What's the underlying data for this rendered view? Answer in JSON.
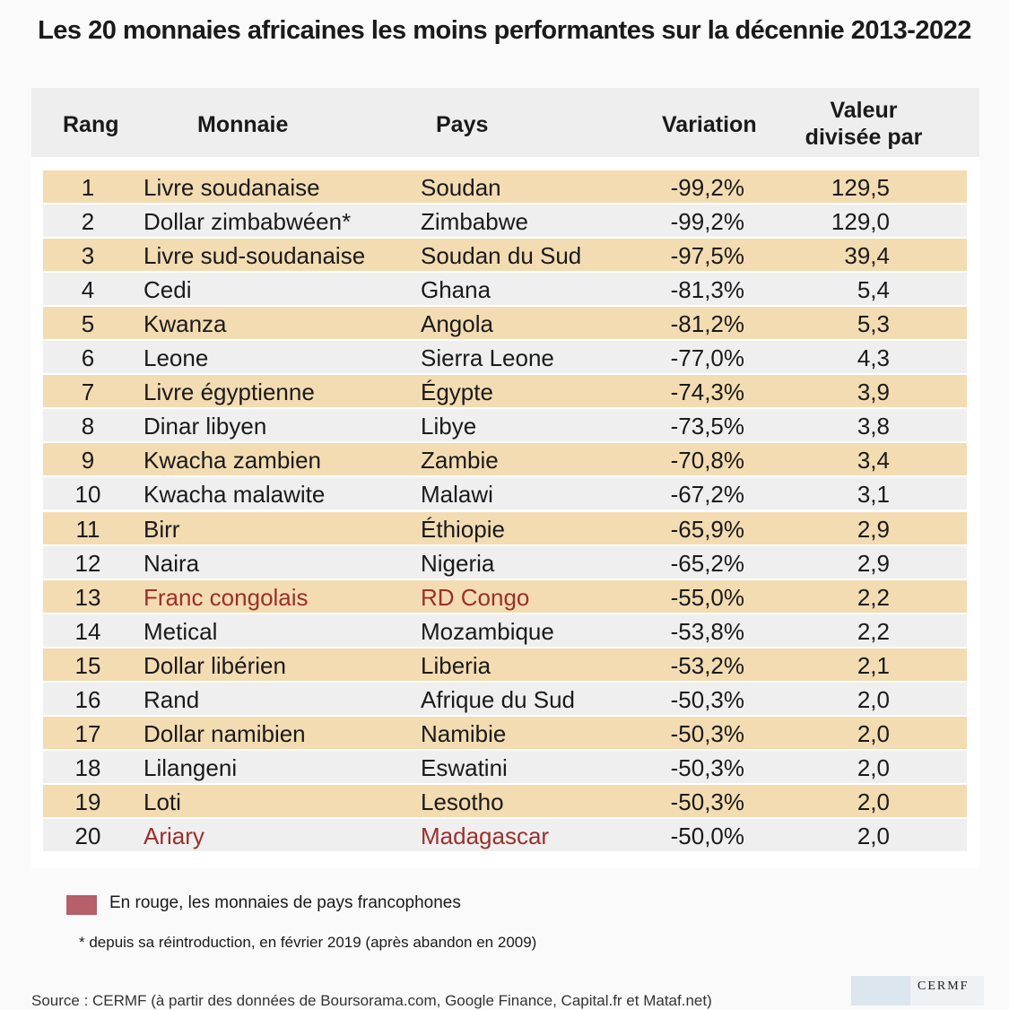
{
  "title": "Les 20 monnaies africaines les moins performantes sur la décennie 2013-2022",
  "table": {
    "headers": [
      "Rang",
      "Monnaie",
      "Pays",
      "Variation",
      "Valeur divisée par"
    ],
    "row_colors": [
      "#f3dcb2",
      "#efefef"
    ],
    "rows": [
      {
        "cells": [
          "1",
          "Livre soudanaise",
          "Soudan",
          "-99,2%",
          "129,5"
        ]
      },
      {
        "cells": [
          "2",
          "Dollar zimbabwéen*",
          "Zimbabwe",
          "-99,2%",
          "129,0"
        ]
      },
      {
        "cells": [
          "3",
          "Livre sud-soudanaise",
          "Soudan du Sud",
          "-97,5%",
          "39,4"
        ]
      },
      {
        "cells": [
          "4",
          "Cedi",
          "Ghana",
          "-81,3%",
          "5,4"
        ]
      },
      {
        "cells": [
          "5",
          "Kwanza",
          "Angola",
          "-81,2%",
          "5,3"
        ]
      },
      {
        "cells": [
          "6",
          "Leone",
          "Sierra Leone",
          "-77,0%",
          "4,3"
        ]
      },
      {
        "cells": [
          "7",
          "Livre égyptienne",
          "Égypte",
          "-74,3%",
          "3,9"
        ]
      },
      {
        "cells": [
          "8",
          "Dinar libyen",
          "Libye",
          "-73,5%",
          "3,8"
        ]
      },
      {
        "cells": [
          "9",
          "Kwacha zambien",
          "Zambie",
          "-70,8%",
          "3,4"
        ]
      },
      {
        "cells": [
          "10",
          "Kwacha malawite",
          "Malawi",
          "-67,2%",
          "3,1"
        ]
      },
      {
        "cells": [
          "11",
          "Birr",
          "Éthiopie",
          "-65,9%",
          "2,9"
        ]
      },
      {
        "cells": [
          "12",
          "Naira",
          "Nigeria",
          "-65,2%",
          "2,9"
        ]
      },
      {
        "cells": [
          "13",
          "Franc congolais",
          "RD Congo",
          "-55,0%",
          "2,2"
        ],
        "color": "#9b2f2b"
      },
      {
        "cells": [
          "14",
          "Metical",
          "Mozambique",
          "-53,8%",
          "2,2"
        ]
      },
      {
        "cells": [
          "15",
          "Dollar libérien",
          "Liberia",
          "-53,2%",
          "2,1"
        ]
      },
      {
        "cells": [
          "16",
          "Rand",
          "Afrique du Sud",
          "-50,3%",
          "2,0"
        ]
      },
      {
        "cells": [
          "17",
          "Dollar namibien",
          "Namibie",
          "-50,3%",
          "2,0"
        ]
      },
      {
        "cells": [
          "18",
          "Lilangeni",
          "Eswatini",
          "-50,3%",
          "2,0"
        ]
      },
      {
        "cells": [
          "19",
          "Loti",
          "Lesotho",
          "-50,3%",
          "2,0"
        ]
      },
      {
        "cells": [
          "20",
          "Ariary",
          "Madagascar",
          "-50,0%",
          "2,0"
        ],
        "color": "#9b2f2b"
      }
    ]
  },
  "legend": {
    "text": "En rouge, les monnaies de pays francophones",
    "color": "#b5606b"
  },
  "footnote": "* depuis sa réintroduction, en février 2019 (après abandon en 2009)",
  "source": "Source : CERMF (à partir des données de Boursorama.com, Google Finance, Capital.fr et Mataf.net)",
  "logo": "CERMF"
}
